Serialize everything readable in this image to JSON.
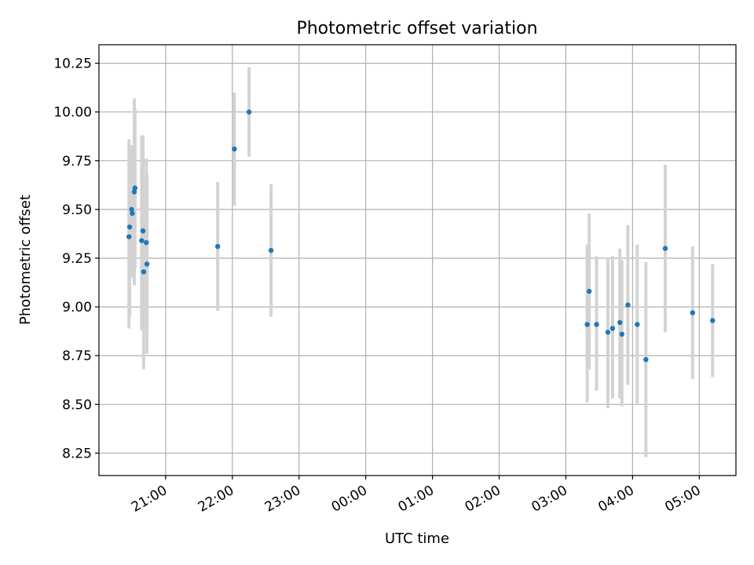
{
  "chart_data": {
    "type": "scatter",
    "title": "Photometric offset variation",
    "xlabel": "UTC time",
    "ylabel": "Photometric offset",
    "x_axis": "time (hours since 20:00 UTC, night crossing midnight)",
    "xlim_hours": [
      0.0,
      9.55
    ],
    "ylim": [
      8.135,
      10.345
    ],
    "grid": true,
    "xticks": [
      {
        "h": 1,
        "label": "21:00"
      },
      {
        "h": 2,
        "label": "22:00"
      },
      {
        "h": 3,
        "label": "23:00"
      },
      {
        "h": 4,
        "label": "00:00"
      },
      {
        "h": 5,
        "label": "01:00"
      },
      {
        "h": 6,
        "label": "02:00"
      },
      {
        "h": 7,
        "label": "03:00"
      },
      {
        "h": 8,
        "label": "04:00"
      },
      {
        "h": 9,
        "label": "05:00"
      }
    ],
    "yticks": [
      {
        "v": 8.25,
        "label": "8.25"
      },
      {
        "v": 8.5,
        "label": "8.50"
      },
      {
        "v": 8.75,
        "label": "8.75"
      },
      {
        "v": 9.0,
        "label": "9.00"
      },
      {
        "v": 9.25,
        "label": "9.25"
      },
      {
        "v": 9.5,
        "label": "9.50"
      },
      {
        "v": 9.75,
        "label": "9.75"
      },
      {
        "v": 10.0,
        "label": "10.00"
      },
      {
        "v": 10.25,
        "label": "10.25"
      }
    ],
    "points": [
      {
        "h": 0.45,
        "y": 9.36,
        "lo": 8.89,
        "hi": 9.86
      },
      {
        "h": 0.46,
        "y": 9.41,
        "lo": 8.95,
        "hi": 9.7
      },
      {
        "h": 0.49,
        "y": 9.5,
        "lo": 9.15,
        "hi": 9.83
      },
      {
        "h": 0.5,
        "y": 9.48,
        "lo": 9.2,
        "hi": 9.75
      },
      {
        "h": 0.53,
        "y": 9.59,
        "lo": 9.11,
        "hi": 10.07
      },
      {
        "h": 0.54,
        "y": 9.61,
        "lo": 9.2,
        "hi": 10.02
      },
      {
        "h": 0.64,
        "y": 9.34,
        "lo": 8.88,
        "hi": 9.88
      },
      {
        "h": 0.66,
        "y": 9.39,
        "lo": 8.9,
        "hi": 9.88
      },
      {
        "h": 0.67,
        "y": 9.18,
        "lo": 8.68,
        "hi": 9.66
      },
      {
        "h": 0.71,
        "y": 9.33,
        "lo": 8.87,
        "hi": 9.76
      },
      {
        "h": 0.72,
        "y": 9.22,
        "lo": 8.76,
        "hi": 9.68
      },
      {
        "h": 1.78,
        "y": 9.31,
        "lo": 8.98,
        "hi": 9.64
      },
      {
        "h": 2.03,
        "y": 9.81,
        "lo": 9.52,
        "hi": 10.1
      },
      {
        "h": 2.25,
        "y": 10.0,
        "lo": 9.77,
        "hi": 10.23
      },
      {
        "h": 2.58,
        "y": 9.29,
        "lo": 8.95,
        "hi": 9.63
      },
      {
        "h": 7.32,
        "y": 8.91,
        "lo": 8.51,
        "hi": 9.32
      },
      {
        "h": 7.35,
        "y": 9.08,
        "lo": 8.68,
        "hi": 9.48
      },
      {
        "h": 7.46,
        "y": 8.91,
        "lo": 8.57,
        "hi": 9.26
      },
      {
        "h": 7.63,
        "y": 8.87,
        "lo": 8.48,
        "hi": 9.25
      },
      {
        "h": 7.7,
        "y": 8.89,
        "lo": 8.53,
        "hi": 9.26
      },
      {
        "h": 7.81,
        "y": 8.92,
        "lo": 8.53,
        "hi": 9.3
      },
      {
        "h": 7.84,
        "y": 8.86,
        "lo": 8.49,
        "hi": 9.24
      },
      {
        "h": 7.93,
        "y": 9.01,
        "lo": 8.6,
        "hi": 9.42
      },
      {
        "h": 8.07,
        "y": 8.91,
        "lo": 8.5,
        "hi": 9.32
      },
      {
        "h": 8.2,
        "y": 8.73,
        "lo": 8.23,
        "hi": 9.23
      },
      {
        "h": 8.49,
        "y": 9.3,
        "lo": 8.87,
        "hi": 9.73
      },
      {
        "h": 8.9,
        "y": 8.97,
        "lo": 8.63,
        "hi": 9.31
      },
      {
        "h": 9.2,
        "y": 8.93,
        "lo": 8.64,
        "hi": 9.22
      }
    ],
    "colors": {
      "point": "#1f77b4",
      "errorbar": "#d3d3d3",
      "grid": "#b0b0b0",
      "axes": "#000000"
    }
  }
}
